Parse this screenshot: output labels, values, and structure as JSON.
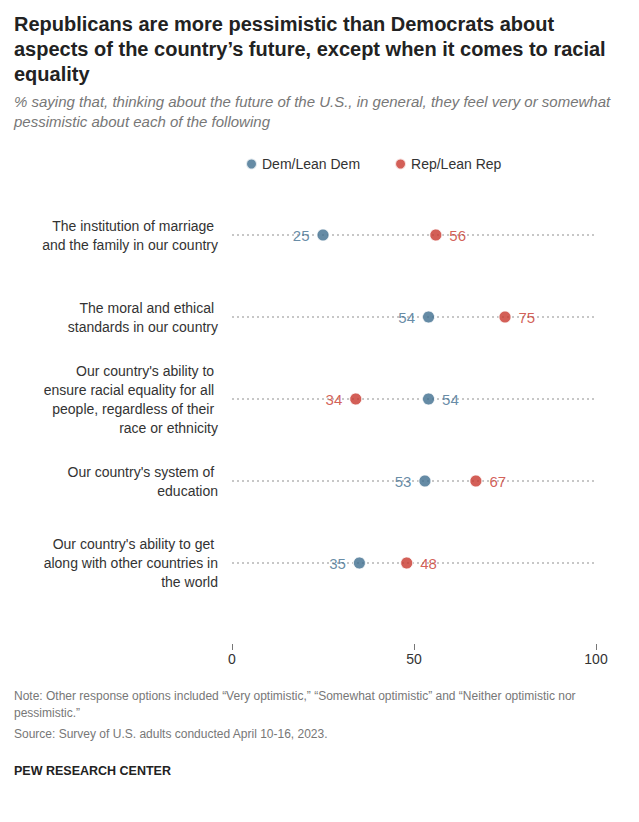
{
  "chart_data": {
    "type": "scatter",
    "orientation": "horizontal",
    "title": "Republicans are more pessimistic than Democrats about aspects of the country’s future, except when it comes to racial equality",
    "subtitle": "% saying that, thinking about the future of the U.S., in general, they feel very or somewhat pessimistic about each of the following",
    "note": "Note: Other response options included “Very optimistic,” “Somewhat optimistic” and “Neither optimistic nor pessimistic.”",
    "source": "Source: Survey of U.S. adults conducted April 10-16, 2023.",
    "credit": "PEW RESEARCH CENTER",
    "categories": [
      "The institution of marriage and the family in our country",
      "The moral and ethical standards in our country",
      "Our country's ability to ensure racial equality for all people, regardless of their race or ethnicity",
      "Our country's system of education",
      "Our country's ability to get along with other countries in the world"
    ],
    "series": [
      {
        "name": "Dem/Lean Dem",
        "color": "#3f6e8f",
        "values": [
          25,
          54,
          54,
          53,
          35
        ]
      },
      {
        "name": "Rep/Lean Rep",
        "color": "#c8372d",
        "values": [
          56,
          75,
          34,
          67,
          48
        ]
      }
    ],
    "xlim": [
      0,
      100
    ],
    "xticks": [
      0,
      50,
      100
    ],
    "legend": "top",
    "data_labels": true,
    "marker": "circle"
  }
}
